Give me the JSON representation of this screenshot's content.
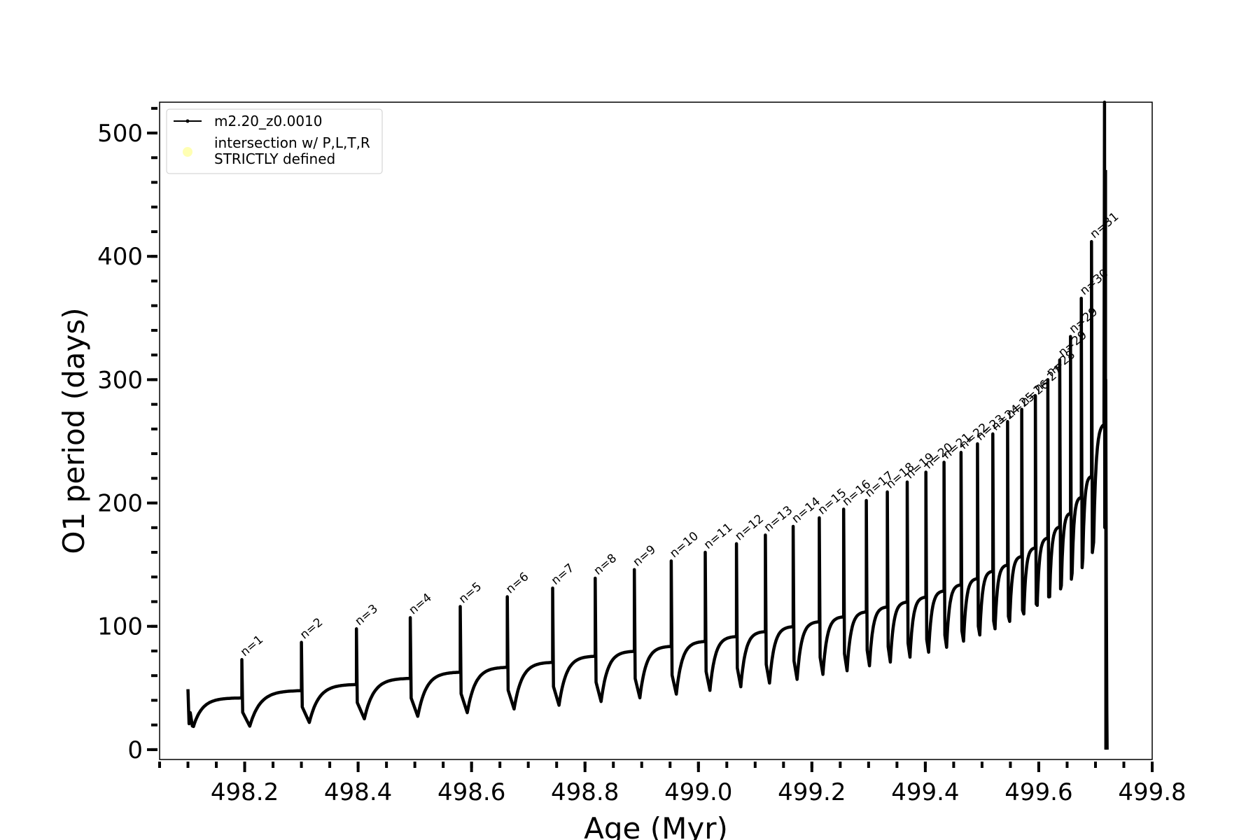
{
  "chart_data": {
    "type": "line",
    "xlabel": "Age (Myr)",
    "ylabel": "O1 period (days)",
    "xlim": [
      498.05,
      499.8
    ],
    "ylim": [
      -8,
      525
    ],
    "x_ticks": [
      498.2,
      498.4,
      498.6,
      498.8,
      499.0,
      499.2,
      499.4,
      499.6,
      499.8
    ],
    "x_tick_labels": [
      "498.2",
      "498.4",
      "498.6",
      "498.8",
      "499.0",
      "499.2",
      "499.4",
      "499.6",
      "499.8"
    ],
    "y_ticks": [
      0,
      100,
      200,
      300,
      400,
      500
    ],
    "y_tick_labels": [
      "0",
      "100",
      "200",
      "300",
      "400",
      "500"
    ],
    "x_minor_step": 0.05,
    "y_minor_step": 20,
    "grid": false,
    "legend": {
      "placement": "top-left",
      "entries": [
        {
          "label": "m2.20_z0.0010",
          "marker": "line",
          "color": "#000000"
        },
        {
          "label_lines": [
            "intersection w/ P,L,T,R",
            "STRICTLY defined"
          ],
          "marker": "dot",
          "color": "#ffffb3"
        }
      ]
    },
    "series": [
      {
        "name": "m2.20_z0.0010",
        "color": "#000000",
        "start": {
          "x": 498.1,
          "y": 33
        },
        "pulses": [
          {
            "n": 1,
            "x": 498.195,
            "peak": 73,
            "pre": 42,
            "min": 19
          },
          {
            "n": 2,
            "x": 498.3,
            "peak": 87,
            "pre": 48,
            "min": 22
          },
          {
            "n": 3,
            "x": 498.397,
            "peak": 98,
            "pre": 53,
            "min": 25
          },
          {
            "n": 4,
            "x": 498.492,
            "peak": 107,
            "pre": 58,
            "min": 27
          },
          {
            "n": 5,
            "x": 498.58,
            "peak": 116,
            "pre": 63,
            "min": 30
          },
          {
            "n": 6,
            "x": 498.663,
            "peak": 124,
            "pre": 67,
            "min": 33
          },
          {
            "n": 7,
            "x": 498.743,
            "peak": 131,
            "pre": 71,
            "min": 36
          },
          {
            "n": 8,
            "x": 498.818,
            "peak": 139,
            "pre": 76,
            "min": 39
          },
          {
            "n": 9,
            "x": 498.887,
            "peak": 146,
            "pre": 80,
            "min": 42
          },
          {
            "n": 10,
            "x": 498.952,
            "peak": 153,
            "pre": 84,
            "min": 45
          },
          {
            "n": 11,
            "x": 499.012,
            "peak": 160,
            "pre": 88,
            "min": 48
          },
          {
            "n": 12,
            "x": 499.067,
            "peak": 167,
            "pre": 92,
            "min": 51
          },
          {
            "n": 13,
            "x": 499.118,
            "peak": 174,
            "pre": 96,
            "min": 54
          },
          {
            "n": 14,
            "x": 499.167,
            "peak": 181,
            "pre": 100,
            "min": 57
          },
          {
            "n": 15,
            "x": 499.213,
            "peak": 188,
            "pre": 104,
            "min": 61
          },
          {
            "n": 16,
            "x": 499.256,
            "peak": 195,
            "pre": 108,
            "min": 64
          },
          {
            "n": 17,
            "x": 499.296,
            "peak": 202,
            "pre": 112,
            "min": 68
          },
          {
            "n": 18,
            "x": 499.333,
            "peak": 209,
            "pre": 116,
            "min": 71
          },
          {
            "n": 19,
            "x": 499.368,
            "peak": 217,
            "pre": 120,
            "min": 75
          },
          {
            "n": 20,
            "x": 499.401,
            "peak": 225,
            "pre": 124,
            "min": 79
          },
          {
            "n": 21,
            "x": 499.433,
            "peak": 233,
            "pre": 129,
            "min": 83
          },
          {
            "n": 22,
            "x": 499.463,
            "peak": 241,
            "pre": 134,
            "min": 88
          },
          {
            "n": 23,
            "x": 499.492,
            "peak": 248,
            "pre": 139,
            "min": 93
          },
          {
            "n": 24,
            "x": 499.519,
            "peak": 256,
            "pre": 145,
            "min": 98
          },
          {
            "n": 25,
            "x": 499.545,
            "peak": 266,
            "pre": 150,
            "min": 104
          },
          {
            "n": 26,
            "x": 499.57,
            "peak": 276,
            "pre": 157,
            "min": 110
          },
          {
            "n": 27,
            "x": 499.594,
            "peak": 287,
            "pre": 164,
            "min": 117
          },
          {
            "n": 28,
            "x": 499.616,
            "peak": 300,
            "pre": 172,
            "min": 124
          },
          {
            "n": 29,
            "x": 499.637,
            "peak": 316,
            "pre": 181,
            "min": 133
          },
          {
            "n": 29,
            "x": 499.656,
            "peak": 335,
            "pre": 192,
            "min": 143
          },
          {
            "n": 30,
            "x": 499.675,
            "peak": 366,
            "pre": 205,
            "min": 155
          },
          {
            "n": 31,
            "x": 499.693,
            "peak": 412,
            "pre": 222,
            "min": 168
          }
        ],
        "end": {
          "x": 499.718,
          "peak": 525,
          "pre": 265,
          "min": 0
        },
        "annotation_labels": [
          "n=1",
          "n=2",
          "n=3",
          "n=4",
          "n=5",
          "n=6",
          "n=7",
          "n=8",
          "n=9",
          "n=10",
          "n=11",
          "n=12",
          "n=13",
          "n=14",
          "n=15",
          "n=16",
          "n=17",
          "n=18",
          "n=19",
          "n=20",
          "n=21",
          "n=22",
          "n=23",
          "n=24",
          "n=25",
          "n=26",
          "n=27",
          "n=28",
          "n=29",
          "n=29",
          "n=30",
          "n=31"
        ]
      }
    ]
  }
}
